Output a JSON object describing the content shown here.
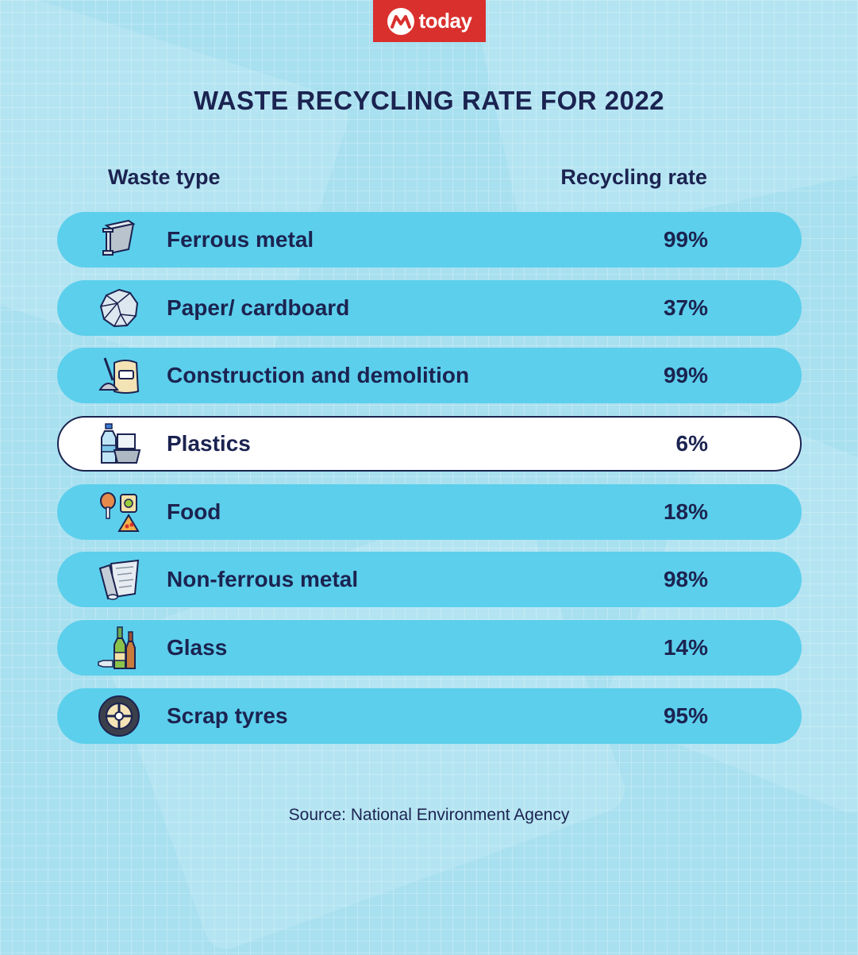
{
  "brand": {
    "name": "today",
    "accent": "#d9302e"
  },
  "colors": {
    "row": "#5ccfec",
    "highlight_row": "#ffffff",
    "text": "#1b2350",
    "background": "#a9e0f0"
  },
  "chart_data": {
    "type": "table",
    "title": "WASTE RECYCLING RATE FOR 2022",
    "columns": [
      "Waste type",
      "Recycling rate"
    ],
    "rows": [
      {
        "label": "Ferrous metal",
        "value": "99%",
        "icon": "steel-beam-icon"
      },
      {
        "label": "Paper/ cardboard",
        "value": "37%",
        "icon": "crumpled-paper-icon"
      },
      {
        "label": "Construction and demolition",
        "value": "99%",
        "icon": "cement-bag-shovel-icon"
      },
      {
        "label": "Plastics",
        "value": "6%",
        "icon": "plastic-bottle-container-icon",
        "highlight": true
      },
      {
        "label": "Food",
        "value": "18%",
        "icon": "food-waste-icon"
      },
      {
        "label": "Non-ferrous metal",
        "value": "98%",
        "icon": "aluminium-foil-roll-icon"
      },
      {
        "label": "Glass",
        "value": "14%",
        "icon": "glass-bottles-icon"
      },
      {
        "label": "Scrap tyres",
        "value": "95%",
        "icon": "tyre-icon"
      }
    ]
  },
  "source": "Source: National Environment Agency"
}
